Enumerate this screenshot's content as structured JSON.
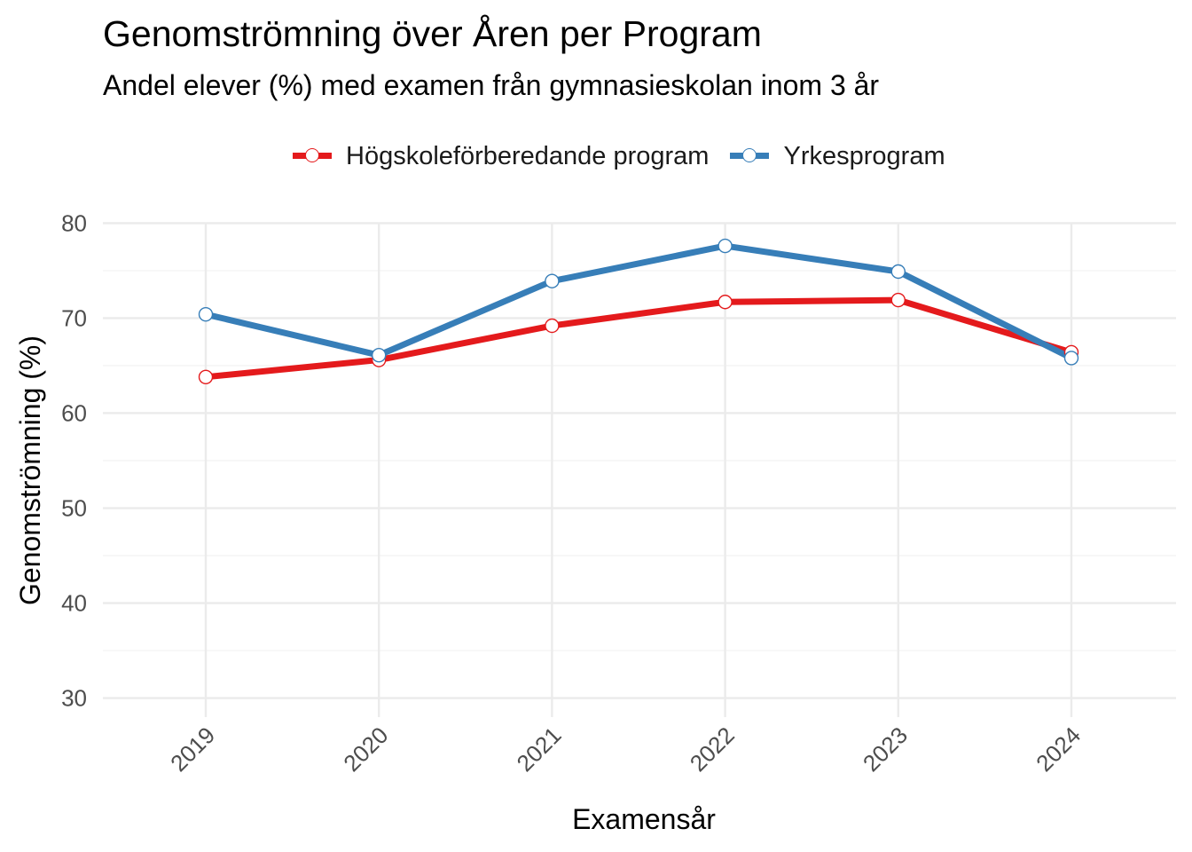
{
  "chart_data": {
    "type": "line",
    "title": "Genomströmning över Åren per Program",
    "subtitle": "Andel elever (%) med examen från gymnasieskolan inom 3 år",
    "xlabel": "Examensår",
    "ylabel": "Genomströmning (%)",
    "categories": [
      "2019",
      "2020",
      "2021",
      "2022",
      "2023",
      "2024"
    ],
    "ylim": [
      28,
      82
    ],
    "yticks": [
      30,
      40,
      50,
      60,
      70,
      80
    ],
    "grid": true,
    "legend_position": "top",
    "series": [
      {
        "name": "Högskoleförberedande program",
        "color": "#e41a1c",
        "values": [
          63.8,
          65.6,
          69.2,
          71.7,
          71.9,
          66.4
        ]
      },
      {
        "name": "Yrkesprogram",
        "color": "#377eb8",
        "values": [
          70.4,
          66.1,
          73.9,
          77.6,
          74.9,
          65.8
        ]
      }
    ]
  }
}
